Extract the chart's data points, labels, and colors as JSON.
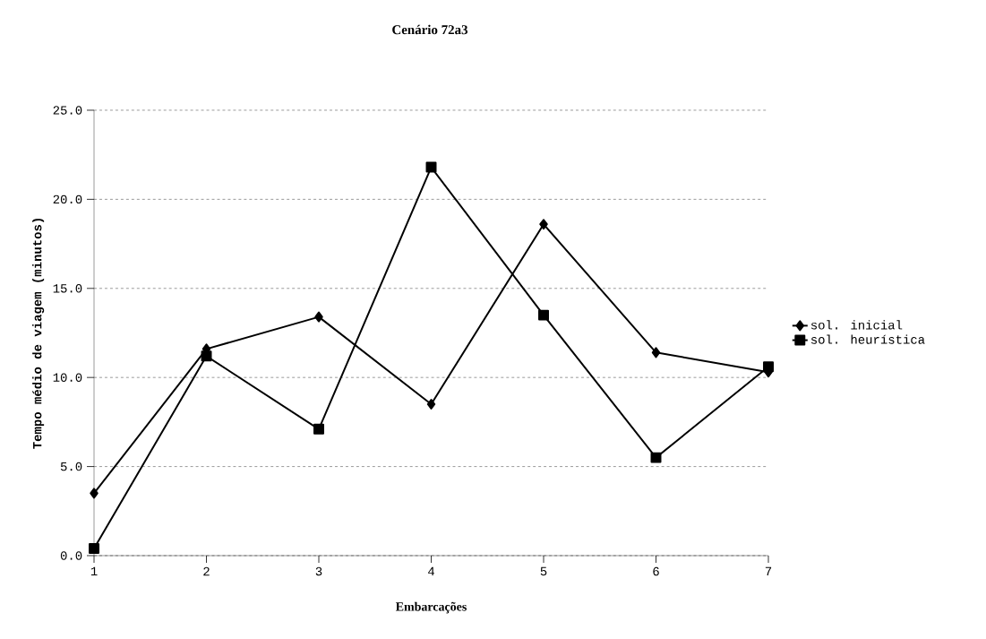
{
  "chart_data": {
    "type": "line",
    "title": "Cenário 72a3",
    "xlabel": "Embarcações",
    "ylabel": "Tempo médio de viagem (minutos)",
    "categories": [
      "1",
      "2",
      "3",
      "4",
      "5",
      "6",
      "7"
    ],
    "series": [
      {
        "name": "sol. inicial",
        "color": "#000000",
        "marker": "diamond",
        "values": [
          3.5,
          11.6,
          13.4,
          8.5,
          18.6,
          11.4,
          10.3
        ]
      },
      {
        "name": "sol. heurística",
        "color": "#000000",
        "marker": "square",
        "values": [
          0.4,
          11.2,
          7.1,
          21.8,
          13.5,
          5.5,
          10.6
        ]
      }
    ],
    "ylim": [
      0,
      25
    ],
    "yticks": [
      {
        "value": 0,
        "label": "0.0"
      },
      {
        "value": 5,
        "label": "5.0"
      },
      {
        "value": 10,
        "label": "10.0"
      },
      {
        "value": 15,
        "label": "15.0"
      },
      {
        "value": 20,
        "label": "20.0"
      },
      {
        "value": 25,
        "label": "25.0"
      }
    ],
    "grid": "y",
    "legend": "right",
    "line_style": "solid"
  }
}
